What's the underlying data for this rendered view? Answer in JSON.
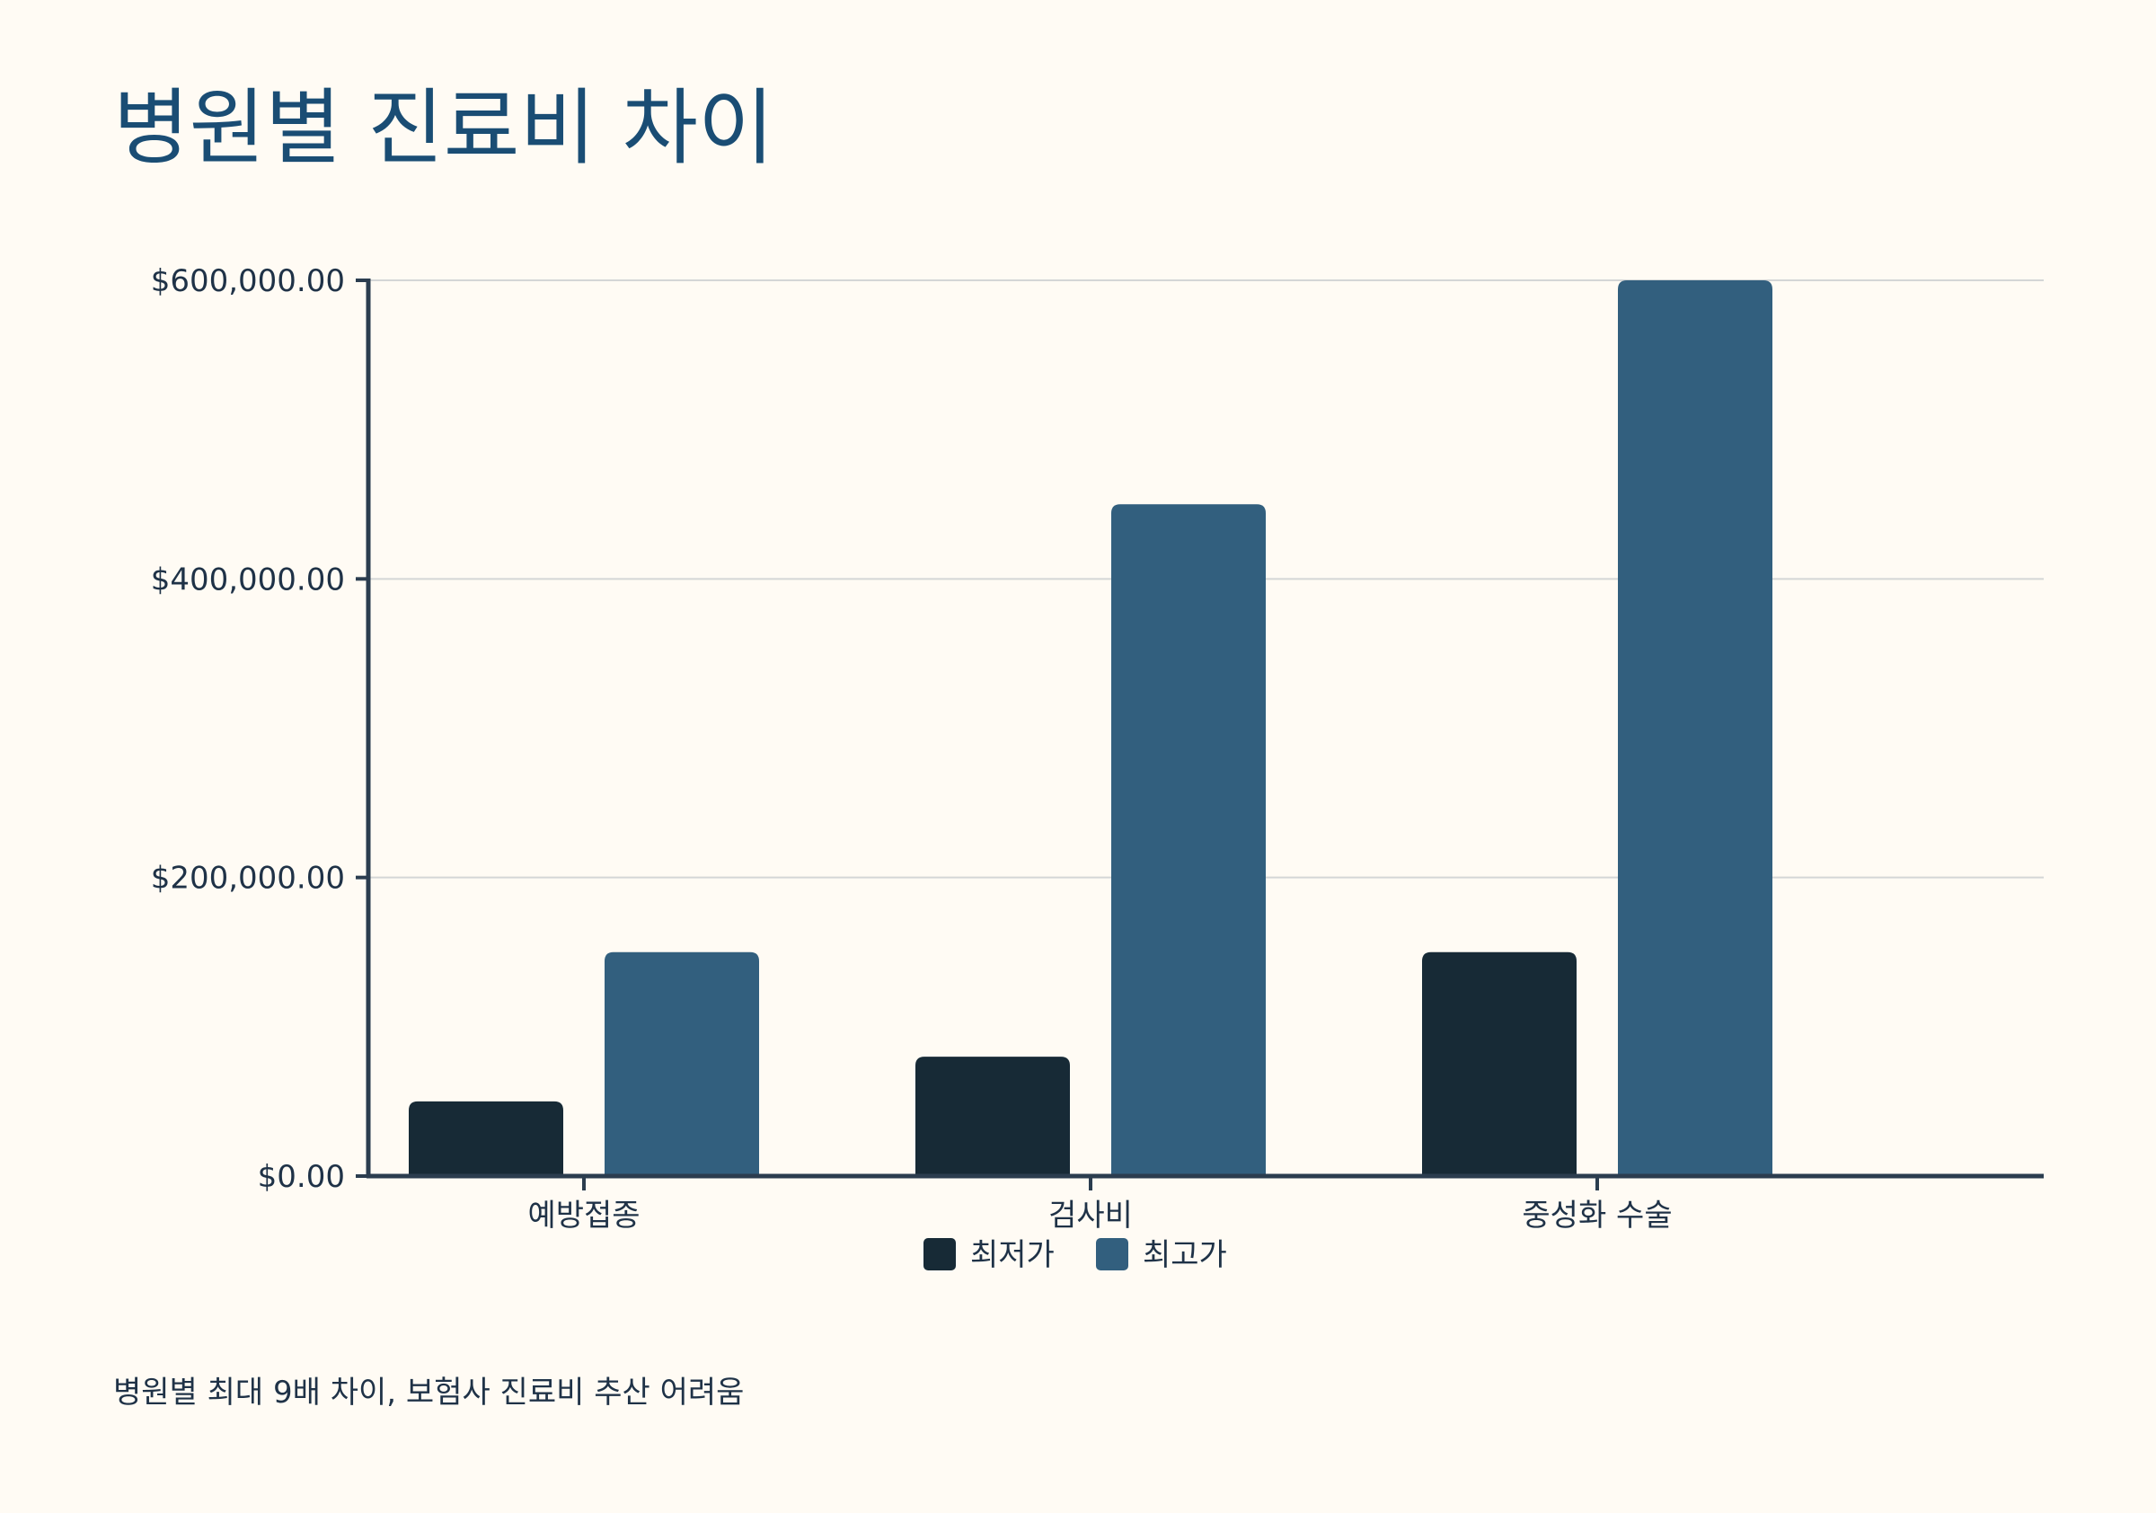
{
  "chart_data": {
    "type": "bar",
    "title": "병원별 진료비 차이",
    "categories": [
      "예방접종",
      "검사비",
      "중성화 수술"
    ],
    "series": [
      {
        "name": "최저가",
        "values": [
          50000,
          80000,
          150000
        ],
        "color": "#172a36"
      },
      {
        "name": "최고가",
        "values": [
          150000,
          450000,
          600000
        ],
        "color": "#325f7e"
      }
    ],
    "ylim": [
      0,
      600000
    ],
    "y_ticks": [
      0,
      200000,
      400000,
      600000
    ],
    "y_tick_labels": [
      "$0.00",
      "$200,000.00",
      "$400,000.00",
      "$600,000.00"
    ],
    "grid": true,
    "legend_position": "bottom",
    "colors": {
      "background": "#fffbf4",
      "title": "#1a4d74",
      "axis": "#2b3d4f",
      "grid": "#d4d6d6",
      "text": "#1f3247"
    },
    "note": "병원별 최대 9배 차이, 보험사 진료비 추산 어려움"
  }
}
